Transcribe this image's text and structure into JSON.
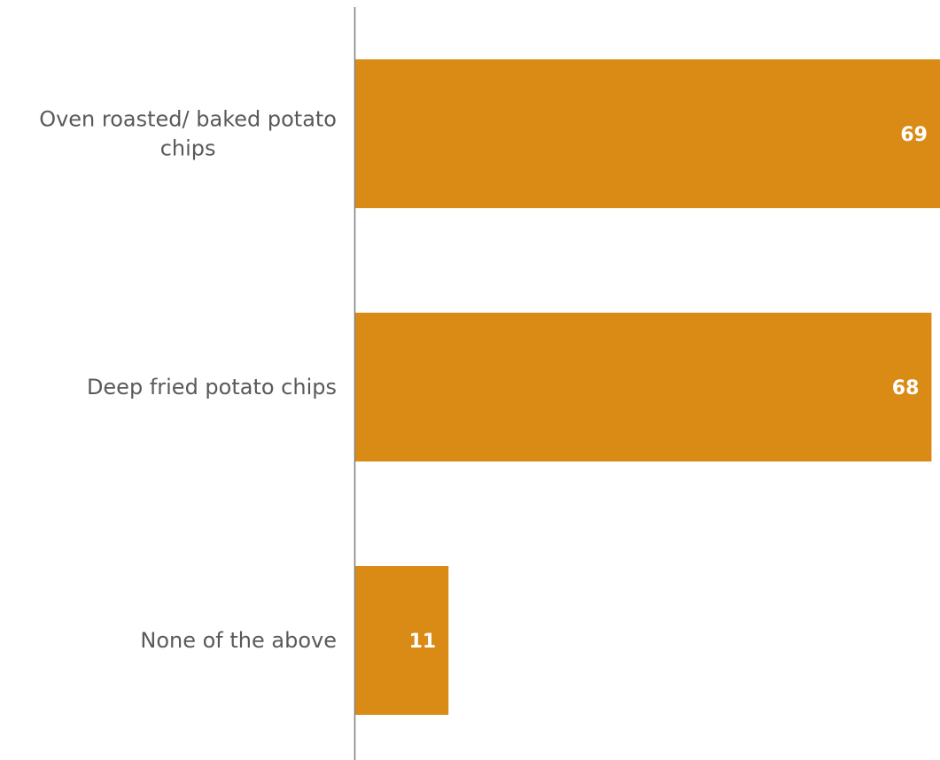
{
  "chart_data": {
    "type": "bar",
    "orientation": "horizontal",
    "categories": [
      [
        "Oven roasted/ baked potato",
        "chips"
      ],
      [
        "Deep fried potato chips"
      ],
      [
        "None of the above"
      ]
    ],
    "values": [
      69,
      68,
      11
    ],
    "data_labels": [
      "69",
      "68",
      "11"
    ],
    "title": "",
    "xlabel": "",
    "ylabel": "",
    "xlim": [
      0,
      69
    ],
    "grid": false,
    "legend": "none",
    "colors": {
      "bar": "#DA8B16",
      "axis": "#7f7f7f",
      "category_text": "#595959",
      "value_text": "#ffffff"
    }
  }
}
